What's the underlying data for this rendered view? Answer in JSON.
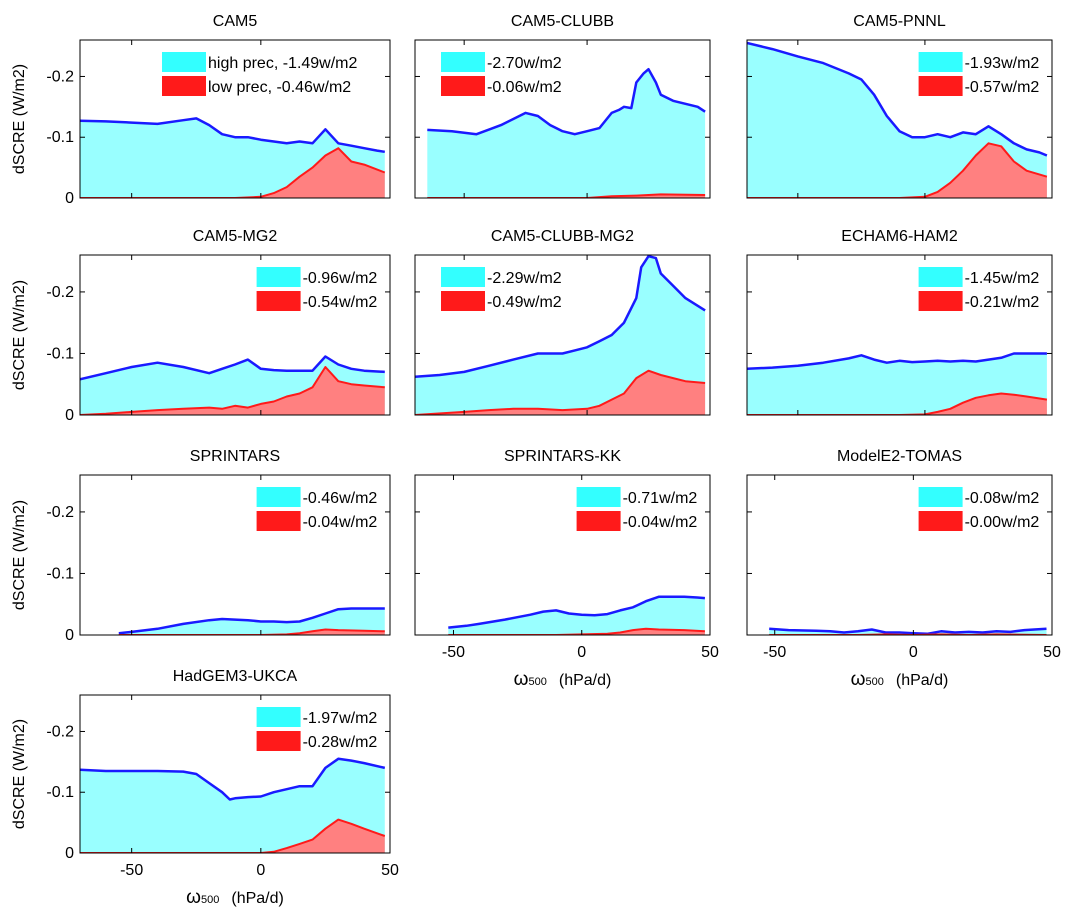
{
  "colors": {
    "high_fill": "#99ffff",
    "high_line": "#1a1aff",
    "low_fill": "#ff8080",
    "low_line": "#ff1a1a",
    "legend_high": "#33ffff",
    "legend_low": "#ff1a1a"
  },
  "axes_text": {
    "ylabel": "dSCRE (W/m2)",
    "xlabel_symbol": "ω",
    "xlabel_sub": "500",
    "xlabel_unit": "(hPa/d)"
  },
  "chart_data": [
    {
      "type": "area",
      "title": "CAM5",
      "xlim": [
        -70,
        50
      ],
      "ylim": [
        -0.26,
        0
      ],
      "legend_placement": "top-right",
      "legend": [
        "high prec, -1.49w/m2",
        "low prec, -0.46w/m2"
      ],
      "series": [
        {
          "name": "high prec, -1.49w/m2",
          "x": [
            -70,
            -60,
            -50,
            -40,
            -30,
            -25,
            -20,
            -15,
            -10,
            -5,
            0,
            5,
            10,
            15,
            20,
            25,
            30,
            35,
            40,
            45,
            48
          ],
          "y": [
            -0.127,
            -0.126,
            -0.124,
            -0.122,
            -0.128,
            -0.131,
            -0.12,
            -0.105,
            -0.1,
            -0.1,
            -0.096,
            -0.093,
            -0.09,
            -0.093,
            -0.09,
            -0.113,
            -0.09,
            -0.086,
            -0.082,
            -0.078,
            -0.076
          ]
        },
        {
          "name": "low prec, -0.46w/m2",
          "x": [
            -70,
            -50,
            -30,
            -10,
            0,
            5,
            10,
            15,
            20,
            25,
            30,
            35,
            40,
            48
          ],
          "y": [
            0,
            0,
            0,
            0,
            -0.002,
            -0.008,
            -0.018,
            -0.035,
            -0.05,
            -0.07,
            -0.082,
            -0.06,
            -0.055,
            -0.042
          ]
        }
      ]
    },
    {
      "type": "area",
      "title": "CAM5-CLUBB",
      "xlim": [
        -70,
        50
      ],
      "ylim": [
        -0.26,
        0
      ],
      "legend_placement": "top-left",
      "legend": [
        "-2.70w/m2",
        "-0.06w/m2"
      ],
      "series": [
        {
          "name": "-2.70w/m2",
          "x": [
            -65,
            -55,
            -45,
            -35,
            -25,
            -20,
            -15,
            -10,
            -5,
            0,
            5,
            10,
            13,
            15,
            18,
            20,
            23,
            25,
            28,
            30,
            35,
            40,
            45,
            48
          ],
          "y": [
            -0.112,
            -0.11,
            -0.105,
            -0.12,
            -0.14,
            -0.135,
            -0.12,
            -0.11,
            -0.105,
            -0.11,
            -0.115,
            -0.14,
            -0.145,
            -0.15,
            -0.148,
            -0.19,
            -0.205,
            -0.212,
            -0.19,
            -0.17,
            -0.16,
            -0.155,
            -0.15,
            -0.142
          ]
        },
        {
          "name": "-0.06w/m2",
          "x": [
            -65,
            -40,
            -20,
            0,
            10,
            20,
            25,
            30,
            48
          ],
          "y": [
            0,
            0,
            0,
            0,
            -0.003,
            -0.004,
            -0.005,
            -0.006,
            -0.005
          ]
        }
      ]
    },
    {
      "type": "area",
      "title": "CAM5-PNNL",
      "xlim": [
        -70,
        50
      ],
      "ylim": [
        -0.26,
        0
      ],
      "legend_placement": "top-right",
      "legend": [
        "-1.93w/m2",
        "-0.57w/m2"
      ],
      "series": [
        {
          "name": "-1.93w/m2",
          "x": [
            -70,
            -60,
            -50,
            -40,
            -30,
            -25,
            -20,
            -15,
            -10,
            -5,
            0,
            5,
            10,
            15,
            20,
            25,
            30,
            35,
            40,
            45,
            48
          ],
          "y": [
            -0.255,
            -0.245,
            -0.233,
            -0.222,
            -0.205,
            -0.195,
            -0.17,
            -0.135,
            -0.11,
            -0.1,
            -0.1,
            -0.105,
            -0.1,
            -0.108,
            -0.105,
            -0.118,
            -0.105,
            -0.09,
            -0.08,
            -0.075,
            -0.07
          ]
        },
        {
          "name": "-0.57w/m2",
          "x": [
            -70,
            -30,
            -10,
            0,
            5,
            10,
            15,
            20,
            25,
            30,
            35,
            40,
            48
          ],
          "y": [
            0,
            0,
            0,
            -0.002,
            -0.01,
            -0.025,
            -0.045,
            -0.07,
            -0.09,
            -0.085,
            -0.06,
            -0.045,
            -0.035
          ]
        }
      ]
    },
    {
      "type": "area",
      "title": "CAM5-MG2",
      "xlim": [
        -70,
        50
      ],
      "ylim": [
        -0.26,
        0
      ],
      "legend_placement": "top-right",
      "legend": [
        "-0.96w/m2",
        "-0.54w/m2"
      ],
      "series": [
        {
          "name": "-0.96w/m2",
          "x": [
            -70,
            -60,
            -50,
            -40,
            -30,
            -20,
            -15,
            -10,
            -5,
            0,
            5,
            10,
            15,
            20,
            25,
            30,
            35,
            40,
            48
          ],
          "y": [
            -0.058,
            -0.068,
            -0.078,
            -0.085,
            -0.078,
            -0.068,
            -0.075,
            -0.082,
            -0.09,
            -0.075,
            -0.073,
            -0.072,
            -0.072,
            -0.072,
            -0.095,
            -0.082,
            -0.075,
            -0.072,
            -0.07
          ]
        },
        {
          "name": "-0.54w/m2",
          "x": [
            -70,
            -60,
            -50,
            -40,
            -30,
            -20,
            -15,
            -10,
            -5,
            0,
            5,
            10,
            15,
            20,
            25,
            30,
            35,
            40,
            48
          ],
          "y": [
            0,
            -0.002,
            -0.005,
            -0.008,
            -0.01,
            -0.012,
            -0.01,
            -0.015,
            -0.012,
            -0.018,
            -0.022,
            -0.03,
            -0.035,
            -0.045,
            -0.078,
            -0.055,
            -0.05,
            -0.048,
            -0.045
          ]
        }
      ]
    },
    {
      "type": "area",
      "title": "CAM5-CLUBB-MG2",
      "xlim": [
        -70,
        50
      ],
      "ylim": [
        -0.26,
        0
      ],
      "legend_placement": "top-left",
      "legend": [
        "-2.29w/m2",
        "-0.49w/m2"
      ],
      "series": [
        {
          "name": "-2.29w/m2",
          "x": [
            -70,
            -60,
            -50,
            -40,
            -30,
            -20,
            -10,
            -5,
            0,
            5,
            10,
            15,
            20,
            22,
            25,
            28,
            30,
            35,
            40,
            48
          ],
          "y": [
            -0.062,
            -0.065,
            -0.07,
            -0.08,
            -0.09,
            -0.1,
            -0.1,
            -0.105,
            -0.11,
            -0.12,
            -0.13,
            -0.15,
            -0.19,
            -0.24,
            -0.258,
            -0.255,
            -0.23,
            -0.21,
            -0.19,
            -0.17
          ]
        },
        {
          "name": "-0.49w/m2",
          "x": [
            -70,
            -50,
            -40,
            -30,
            -20,
            -10,
            0,
            5,
            10,
            15,
            20,
            25,
            30,
            35,
            40,
            48
          ],
          "y": [
            0,
            -0.005,
            -0.008,
            -0.01,
            -0.01,
            -0.008,
            -0.01,
            -0.015,
            -0.025,
            -0.035,
            -0.06,
            -0.072,
            -0.065,
            -0.06,
            -0.055,
            -0.052
          ]
        }
      ]
    },
    {
      "type": "area",
      "title": "ECHAM6-HAM2",
      "xlim": [
        -70,
        50
      ],
      "ylim": [
        -0.26,
        0
      ],
      "legend_placement": "top-right",
      "legend": [
        "-1.45w/m2",
        "-0.21w/m2"
      ],
      "series": [
        {
          "name": "-1.45w/m2",
          "x": [
            -70,
            -60,
            -50,
            -40,
            -30,
            -25,
            -20,
            -15,
            -10,
            -5,
            0,
            5,
            10,
            15,
            20,
            25,
            30,
            35,
            40,
            48
          ],
          "y": [
            -0.075,
            -0.077,
            -0.08,
            -0.085,
            -0.092,
            -0.097,
            -0.09,
            -0.085,
            -0.088,
            -0.086,
            -0.087,
            -0.088,
            -0.087,
            -0.088,
            -0.087,
            -0.09,
            -0.093,
            -0.1,
            -0.1,
            -0.1
          ]
        },
        {
          "name": "-0.21w/m2",
          "x": [
            -70,
            -20,
            -10,
            0,
            5,
            10,
            15,
            20,
            25,
            30,
            35,
            40,
            48
          ],
          "y": [
            0,
            0,
            0,
            -0.001,
            -0.005,
            -0.01,
            -0.02,
            -0.028,
            -0.032,
            -0.035,
            -0.033,
            -0.03,
            -0.025
          ]
        }
      ]
    },
    {
      "type": "area",
      "title": "SPRINTARS",
      "xlim": [
        -70,
        50
      ],
      "ylim": [
        -0.26,
        0
      ],
      "legend_placement": "top-right",
      "legend": [
        "-0.46w/m2",
        "-0.04w/m2"
      ],
      "series": [
        {
          "name": "-0.46w/m2",
          "x": [
            -55,
            -50,
            -40,
            -30,
            -20,
            -15,
            -10,
            -5,
            0,
            5,
            10,
            15,
            20,
            25,
            30,
            35,
            40,
            48
          ],
          "y": [
            -0.003,
            -0.005,
            -0.01,
            -0.018,
            -0.024,
            -0.026,
            -0.025,
            -0.024,
            -0.022,
            -0.022,
            -0.021,
            -0.022,
            -0.028,
            -0.035,
            -0.042,
            -0.043,
            -0.043,
            -0.043
          ]
        },
        {
          "name": "-0.04w/m2",
          "x": [
            -55,
            0,
            10,
            15,
            20,
            25,
            30,
            40,
            48
          ],
          "y": [
            0,
            0,
            -0.001,
            -0.003,
            -0.006,
            -0.009,
            -0.008,
            -0.007,
            -0.006
          ]
        }
      ]
    },
    {
      "type": "area",
      "title": "SPRINTARS-KK",
      "xlim": [
        -65,
        50
      ],
      "ylim": [
        -0.26,
        0
      ],
      "legend_placement": "top-right",
      "legend": [
        "-0.71w/m2",
        "-0.04w/m2"
      ],
      "series": [
        {
          "name": "-0.71w/m2",
          "x": [
            -52,
            -45,
            -40,
            -30,
            -20,
            -15,
            -10,
            -5,
            0,
            5,
            10,
            15,
            20,
            25,
            30,
            35,
            40,
            45,
            48
          ],
          "y": [
            -0.012,
            -0.015,
            -0.018,
            -0.025,
            -0.033,
            -0.038,
            -0.04,
            -0.035,
            -0.033,
            -0.032,
            -0.034,
            -0.04,
            -0.045,
            -0.055,
            -0.062,
            -0.062,
            -0.062,
            -0.061,
            -0.06
          ]
        },
        {
          "name": "-0.04w/m2",
          "x": [
            -52,
            -10,
            0,
            10,
            15,
            20,
            25,
            30,
            40,
            48
          ],
          "y": [
            0,
            0,
            -0.001,
            -0.002,
            -0.004,
            -0.008,
            -0.01,
            -0.009,
            -0.008,
            -0.006
          ]
        }
      ]
    },
    {
      "type": "area",
      "title": "ModelE2-TOMAS",
      "xlim": [
        -60,
        50
      ],
      "ylim": [
        -0.26,
        0
      ],
      "legend_placement": "top-right",
      "legend": [
        "-0.08w/m2",
        "-0.00w/m2"
      ],
      "series": [
        {
          "name": "-0.08w/m2",
          "x": [
            -52,
            -45,
            -35,
            -30,
            -25,
            -20,
            -15,
            -10,
            -5,
            0,
            5,
            10,
            15,
            20,
            25,
            30,
            35,
            40,
            48
          ],
          "y": [
            -0.01,
            -0.008,
            -0.007,
            -0.006,
            -0.004,
            -0.006,
            -0.009,
            -0.004,
            -0.004,
            -0.003,
            -0.002,
            -0.006,
            -0.004,
            -0.005,
            -0.004,
            -0.006,
            -0.005,
            -0.008,
            -0.01
          ]
        },
        {
          "name": "-0.00w/m2",
          "x": [
            -52,
            -20,
            -10,
            0,
            10,
            20,
            30,
            48
          ],
          "y": [
            0,
            0,
            -0.001,
            0,
            -0.001,
            0,
            -0.001,
            0
          ]
        }
      ]
    },
    {
      "type": "area",
      "title": "HadGEM3-UKCA",
      "xlim": [
        -70,
        50
      ],
      "ylim": [
        -0.26,
        0
      ],
      "legend_placement": "top-right",
      "legend": [
        "-1.97w/m2",
        "-0.28w/m2"
      ],
      "series": [
        {
          "name": "-1.97w/m2",
          "x": [
            -70,
            -60,
            -50,
            -40,
            -30,
            -25,
            -20,
            -15,
            -12,
            -10,
            -5,
            0,
            5,
            10,
            15,
            20,
            25,
            30,
            35,
            40,
            48
          ],
          "y": [
            -0.137,
            -0.135,
            -0.135,
            -0.135,
            -0.134,
            -0.13,
            -0.115,
            -0.1,
            -0.088,
            -0.09,
            -0.092,
            -0.093,
            -0.1,
            -0.105,
            -0.11,
            -0.11,
            -0.14,
            -0.155,
            -0.152,
            -0.148,
            -0.14
          ]
        },
        {
          "name": "-0.28w/m2",
          "x": [
            -70,
            -10,
            0,
            5,
            10,
            15,
            20,
            25,
            30,
            35,
            40,
            48
          ],
          "y": [
            0,
            0,
            0,
            -0.002,
            -0.008,
            -0.015,
            -0.022,
            -0.04,
            -0.055,
            -0.048,
            -0.04,
            -0.028
          ]
        }
      ]
    }
  ],
  "ticks": {
    "y": [
      {
        "value": -0.2,
        "label": "-0.2"
      },
      {
        "value": -0.1,
        "label": "-0.1"
      },
      {
        "value": 0,
        "label": "0"
      }
    ],
    "x": [
      {
        "value": -50,
        "label": "-50"
      },
      {
        "value": 0,
        "label": "0"
      },
      {
        "value": 50,
        "label": "50"
      }
    ]
  }
}
